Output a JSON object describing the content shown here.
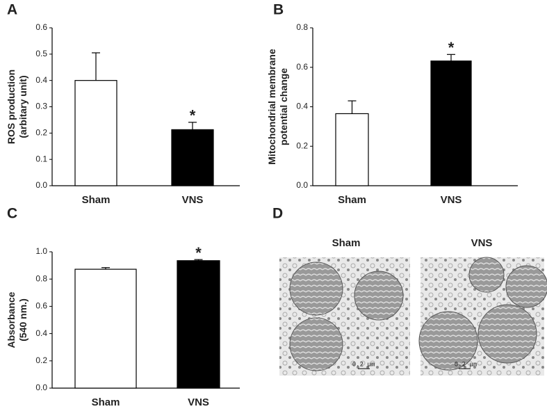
{
  "chart_data": [
    {
      "type": "bar",
      "panel": "A",
      "ylabel": "ROS production\n(arbitary unit)",
      "categories": [
        "Sham",
        "VNS"
      ],
      "values": [
        0.4,
        0.213
      ],
      "errors": [
        0.105,
        0.028
      ],
      "colors": [
        "#ffffff",
        "#000000"
      ],
      "ylim": [
        0,
        0.6
      ],
      "yticks": [
        {
          "value": 0,
          "label": "0.0"
        },
        0.1,
        0.2,
        0.3,
        0.4,
        0.5,
        0.6
      ],
      "annotations": [
        {
          "text": "*",
          "category": "VNS"
        }
      ]
    },
    {
      "type": "bar",
      "panel": "B",
      "ylabel": "Mitochondrial membrane\npotential change",
      "categories": [
        "Sham",
        "VNS"
      ],
      "values": [
        0.365,
        0.632
      ],
      "errors": [
        0.065,
        0.033
      ],
      "colors": [
        "#ffffff",
        "#000000"
      ],
      "ylim": [
        0,
        0.8
      ],
      "yticks": [
        {
          "value": 0,
          "label": "0.0"
        },
        0.2,
        0.4,
        0.6,
        0.8
      ],
      "annotations": [
        {
          "text": "*",
          "category": "VNS"
        }
      ]
    },
    {
      "type": "bar",
      "panel": "C",
      "ylabel": "Absorbance\n(540 nm.)",
      "categories": [
        "Sham",
        "VNS"
      ],
      "values": [
        0.872,
        0.935
      ],
      "errors": [
        0.012,
        0.008
      ],
      "colors": [
        "#ffffff",
        "#000000"
      ],
      "ylim": [
        0,
        1
      ],
      "yticks": [
        {
          "value": 0,
          "label": "0.0"
        },
        0.2,
        0.4,
        0.6,
        0.8,
        {
          "value": 1,
          "label": "1.0"
        }
      ],
      "annotations": [
        {
          "text": "*",
          "category": "VNS"
        }
      ]
    }
  ],
  "image_panel": {
    "panel": "D",
    "images": [
      {
        "title": "Sham",
        "scale_bar": "0.2 μm"
      },
      {
        "title": "VNS",
        "scale_bar": "0.2 μm"
      }
    ]
  }
}
